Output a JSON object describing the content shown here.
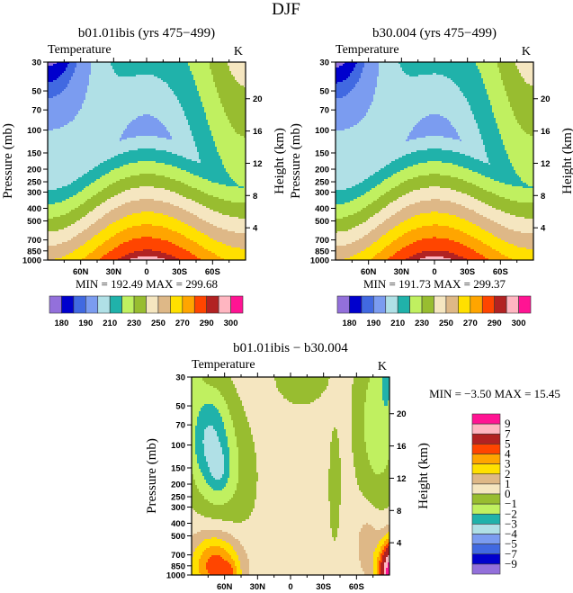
{
  "figure_title": "DJF",
  "chart_data": [
    {
      "type": "heatmap",
      "title": "b01.01ibis (yrs 475−499)",
      "subtitle": "Temperature",
      "units": "K",
      "ylabel": "Pressure (mb)",
      "y2label": "Height (km)",
      "x_range": [
        "90N",
        "90S"
      ],
      "xticks": [
        "60N",
        "30N",
        "0",
        "30S",
        "60S"
      ],
      "yticks": [
        "30",
        "50",
        "70",
        "100",
        "150",
        "200",
        "250",
        "300",
        "400",
        "500",
        "700",
        "850",
        "1000"
      ],
      "y_scale": "log",
      "y_range": [
        30,
        1000
      ],
      "y2ticks": [
        "4",
        "8",
        "12",
        "16",
        "20"
      ],
      "stats": "MIN = 192.49   MAX = 299.68",
      "levels": [
        180,
        185,
        190,
        200,
        210,
        220,
        230,
        240,
        250,
        260,
        270,
        280,
        290,
        295,
        300
      ],
      "colorbar_labels": [
        "180",
        "190",
        "210",
        "230",
        "250",
        "270",
        "290",
        "300"
      ],
      "colorbar_orientation": "horizontal",
      "colors": [
        "#9370db",
        "#0000cd",
        "#4169e1",
        "#7b9cf0",
        "#b0e0e6",
        "#20b2aa",
        "#c0f060",
        "#98bd30",
        "#f5e6c0",
        "#deb887",
        "#ffe000",
        "#ffa500",
        "#ff4500",
        "#b22222",
        "#ffb6c1",
        "#ff1493"
      ]
    },
    {
      "type": "heatmap",
      "title": "b30.004 (yrs 475−499)",
      "subtitle": "Temperature",
      "units": "K",
      "ylabel": "Pressure (mb)",
      "y2label": "Height (km)",
      "x_range": [
        "90N",
        "90S"
      ],
      "xticks": [
        "60N",
        "30N",
        "0",
        "30S",
        "60S"
      ],
      "yticks": [
        "30",
        "50",
        "70",
        "100",
        "150",
        "200",
        "250",
        "300",
        "400",
        "500",
        "700",
        "850",
        "1000"
      ],
      "y_scale": "log",
      "y_range": [
        30,
        1000
      ],
      "y2ticks": [
        "4",
        "8",
        "12",
        "16",
        "20"
      ],
      "stats": "MIN = 191.73   MAX = 299.37",
      "levels": [
        180,
        185,
        190,
        200,
        210,
        220,
        230,
        240,
        250,
        260,
        270,
        280,
        290,
        295,
        300
      ],
      "colorbar_labels": [
        "180",
        "190",
        "210",
        "230",
        "250",
        "270",
        "290",
        "300"
      ],
      "colorbar_orientation": "horizontal",
      "colors": [
        "#9370db",
        "#0000cd",
        "#4169e1",
        "#7b9cf0",
        "#b0e0e6",
        "#20b2aa",
        "#c0f060",
        "#98bd30",
        "#f5e6c0",
        "#deb887",
        "#ffe000",
        "#ffa500",
        "#ff4500",
        "#b22222",
        "#ffb6c1",
        "#ff1493"
      ]
    },
    {
      "type": "heatmap",
      "title": "b01.01ibis − b30.004",
      "subtitle": "Temperature",
      "units": "K",
      "ylabel": "Pressure (mb)",
      "y2label": "Height (km)",
      "x_range": [
        "90N",
        "90S"
      ],
      "xticks": [
        "60N",
        "30N",
        "0",
        "30S",
        "60S"
      ],
      "yticks": [
        "30",
        "50",
        "70",
        "100",
        "150",
        "200",
        "250",
        "300",
        "400",
        "500",
        "700",
        "850",
        "1000"
      ],
      "y_scale": "log",
      "y_range": [
        30,
        1000
      ],
      "y2ticks": [
        "4",
        "8",
        "12",
        "16",
        "20"
      ],
      "stats": "MIN =   −3.50   MAX =   15.45",
      "levels": [
        -9,
        -7,
        -5,
        -4,
        -3,
        -2,
        -1,
        0,
        1,
        2,
        3,
        4,
        5,
        7,
        9
      ],
      "colorbar_labels": [
        "−9",
        "−7",
        "−5",
        "−4",
        "−3",
        "−2",
        "−1",
        "0",
        "1",
        "2",
        "3",
        "4",
        "5",
        "7",
        "9"
      ],
      "colorbar_orientation": "vertical",
      "colors": [
        "#9370db",
        "#0000cd",
        "#4169e1",
        "#7b9cf0",
        "#b0e0e6",
        "#20b2aa",
        "#c0f060",
        "#98bd30",
        "#f5e6c0",
        "#deb887",
        "#ffe000",
        "#ffa500",
        "#ff4500",
        "#b22222",
        "#ffb6c1",
        "#ff1493"
      ]
    }
  ]
}
